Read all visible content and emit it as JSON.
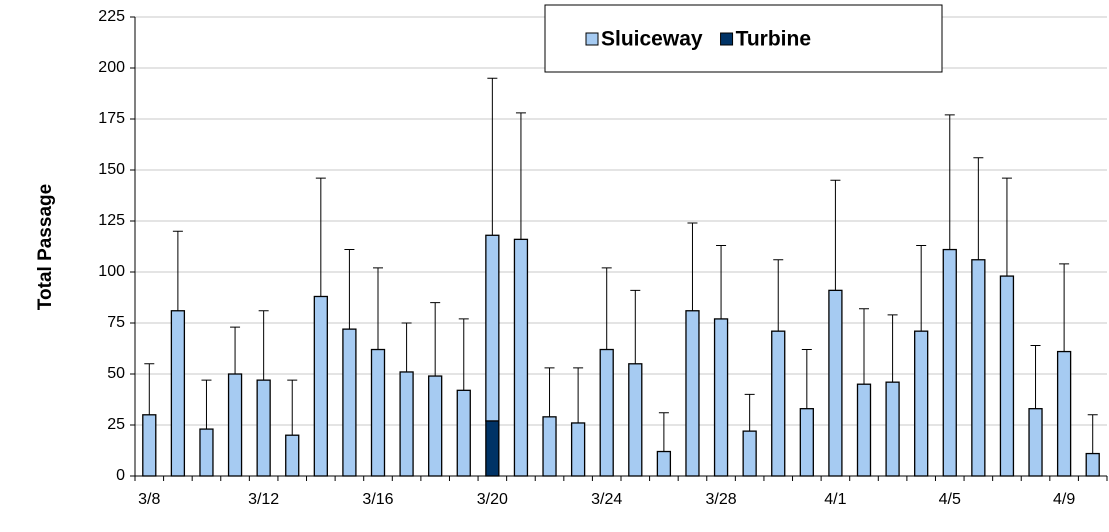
{
  "chart_data": {
    "type": "bar",
    "stacked": true,
    "y_label": "Total Passage",
    "categories": [
      "3/8",
      null,
      null,
      null,
      "3/12",
      null,
      null,
      null,
      "3/16",
      null,
      null,
      null,
      "3/20",
      null,
      null,
      null,
      "3/24",
      null,
      null,
      null,
      "3/28",
      null,
      null,
      null,
      "4/1",
      null,
      null,
      null,
      "4/5",
      null,
      null,
      null,
      "4/9",
      null
    ],
    "series": [
      {
        "name": "Turbine",
        "color": "#003366",
        "values": [
          0,
          0,
          0,
          0,
          0,
          0,
          0,
          0,
          0,
          0,
          0,
          0,
          27,
          0,
          0,
          0,
          0,
          0,
          0,
          0,
          0,
          0,
          0,
          0,
          0,
          0,
          0,
          0,
          0,
          0,
          0,
          0,
          0,
          0
        ]
      },
      {
        "name": "Sluiceway",
        "color": "#a6cbf2",
        "values": [
          30,
          81,
          23,
          50,
          47,
          20,
          88,
          72,
          62,
          51,
          49,
          42,
          91,
          116,
          29,
          26,
          62,
          55,
          12,
          81,
          77,
          22,
          71,
          33,
          91,
          45,
          46,
          71,
          111,
          106,
          98,
          33,
          61,
          11
        ]
      }
    ],
    "errors": [
      25,
      39,
      24,
      23,
      34,
      27,
      58,
      39,
      40,
      24,
      36,
      35,
      77,
      62,
      24,
      27,
      40,
      36,
      19,
      43,
      36,
      18,
      35,
      29,
      54,
      37,
      33,
      42,
      66,
      50,
      48,
      31,
      43,
      19
    ],
    "legend_order": [
      1,
      0
    ],
    "ylim": [
      0,
      225
    ],
    "yticks": [
      0,
      25,
      50,
      75,
      100,
      125,
      150,
      175,
      200,
      225
    ],
    "grid": true
  }
}
